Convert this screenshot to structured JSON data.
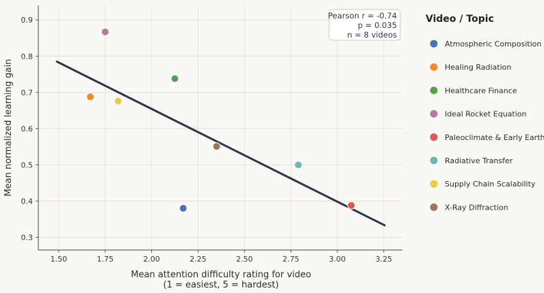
{
  "chart_data": {
    "type": "scatter",
    "xlabel": "Mean attention difficulty rating for video",
    "xlabel_sub": "(1 = easiest, 5 = hardest)",
    "ylabel": "Mean normalized learning gain",
    "xlim": [
      1.39,
      3.35
    ],
    "ylim": [
      0.265,
      0.94
    ],
    "xticks": [
      1.5,
      1.75,
      2.0,
      2.25,
      2.5,
      2.75,
      3.0,
      3.25
    ],
    "xtick_labels": [
      "1.50",
      "1.75",
      "2.00",
      "2.25",
      "2.50",
      "2.75",
      "3.00",
      "3.25"
    ],
    "yticks": [
      0.3,
      0.4,
      0.5,
      0.6,
      0.7,
      0.8,
      0.9
    ],
    "ytick_labels": [
      "0.3",
      "0.4",
      "0.5",
      "0.6",
      "0.7",
      "0.8",
      "0.9"
    ],
    "grid": true,
    "legend_title": "Video / Topic",
    "legend_position": "right",
    "points": [
      {
        "name": "Atmospheric Composition",
        "x": 2.17,
        "y": 0.38,
        "color": "#4c72b0"
      },
      {
        "name": "Healing Radiation",
        "x": 1.67,
        "y": 0.688,
        "color": "#f0892a"
      },
      {
        "name": "Healthcare Finance",
        "x": 2.125,
        "y": 0.738,
        "color": "#55a24a"
      },
      {
        "name": "Ideal Rocket Equation",
        "x": 1.75,
        "y": 0.867,
        "color": "#b07aa1"
      },
      {
        "name": "Paleoclimate & Early Earth",
        "x": 3.075,
        "y": 0.388,
        "color": "#e05759"
      },
      {
        "name": "Radiative Transfer",
        "x": 2.79,
        "y": 0.5,
        "color": "#6fb6b1"
      },
      {
        "name": "Supply Chain Scalability",
        "x": 1.82,
        "y": 0.676,
        "color": "#edc948"
      },
      {
        "name": "X-Ray Diffraction",
        "x": 2.35,
        "y": 0.551,
        "color": "#9c755f"
      }
    ],
    "fit_line": {
      "x": [
        1.49,
        3.255
      ],
      "y": [
        0.785,
        0.333
      ],
      "color": "#2a3347"
    },
    "annotation": [
      "Pearson r = -0.74",
      "p = 0.035",
      "n = 8 videos"
    ]
  }
}
